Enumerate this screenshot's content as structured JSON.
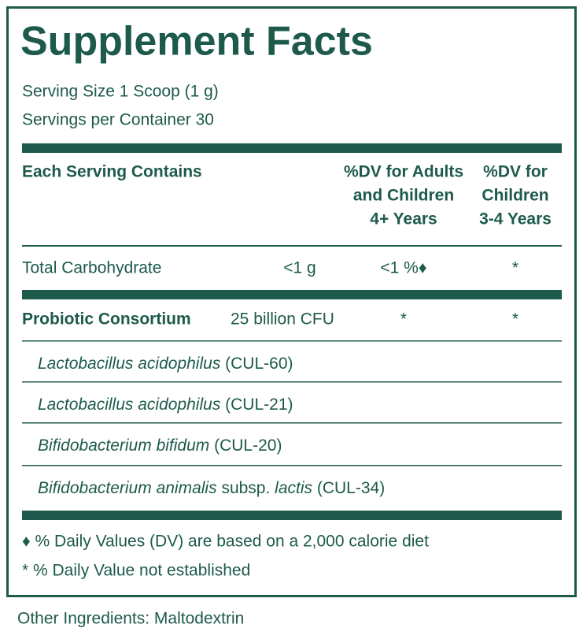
{
  "title": "Supplement Facts",
  "serving_size": "Serving Size 1 Scoop (1 g)",
  "servings_per_container": "Servings per Container 30",
  "header": {
    "label": "Each Serving Contains",
    "dv_adults": [
      "%DV for Adults",
      "and Children",
      "4+ Years"
    ],
    "dv_children": [
      "%DV for",
      "Children",
      "3-4 Years"
    ]
  },
  "rows": [
    {
      "name": "Total Carbohydrate",
      "amount": "<1 g",
      "dv_adults": "<1 %♦",
      "dv_children": "*"
    },
    {
      "name": "Probiotic Consortium",
      "amount": "25 billion CFU",
      "dv_adults": "*",
      "dv_children": "*"
    }
  ],
  "strains": [
    [
      {
        "text": "Lactobacillus acidophilus",
        "italic": true
      },
      {
        "text": " (CUL-60)",
        "italic": false
      }
    ],
    [
      {
        "text": "Lactobacillus acidophilus",
        "italic": true
      },
      {
        "text": " (CUL-21)",
        "italic": false
      }
    ],
    [
      {
        "text": "Bifidobacterium bifidum",
        "italic": true
      },
      {
        "text": " (CUL-20)",
        "italic": false
      }
    ],
    [
      {
        "text": "Bifidobacterium animalis",
        "italic": true
      },
      {
        "text": " subsp. ",
        "italic": false
      },
      {
        "text": "lactis",
        "italic": true
      },
      {
        "text": " (CUL-34)",
        "italic": false
      }
    ]
  ],
  "footnotes": [
    "♦ % Daily Values (DV) are based on a 2,000 calorie diet",
    "* % Daily Value not established"
  ],
  "other_ingredients": "Other Ingredients: Maltodextrin"
}
